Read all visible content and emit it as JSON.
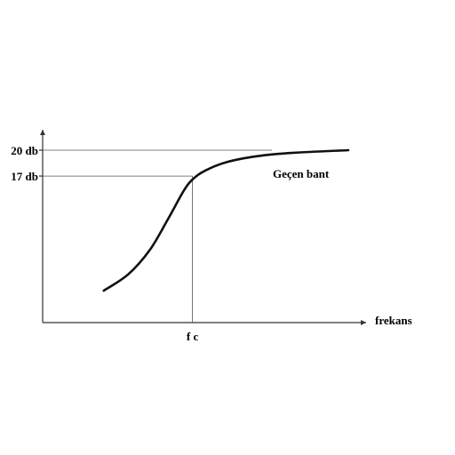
{
  "chart_data": {
    "type": "line",
    "title": "",
    "xlabel": "frekans",
    "ylabel": "",
    "yticks": [
      "20 db",
      "17 db"
    ],
    "xticks": [
      "f c"
    ],
    "annotation": "Geçen bant",
    "series": [
      {
        "values": [
          {
            "x": 0.2,
            "y": 3.7
          },
          {
            "x": 0.28,
            "y": 5.6
          },
          {
            "x": 0.35,
            "y": 8.4
          },
          {
            "x": 0.41,
            "y": 12.0
          },
          {
            "x": 0.46,
            "y": 15.2
          },
          {
            "x": 0.49,
            "y": 16.6
          },
          {
            "x": 0.53,
            "y": 17.6
          },
          {
            "x": 0.6,
            "y": 18.6
          },
          {
            "x": 0.7,
            "y": 19.3
          },
          {
            "x": 0.82,
            "y": 19.7
          },
          {
            "x": 1.0,
            "y": 20.0
          }
        ]
      }
    ],
    "fc_point": {
      "x": 0.49,
      "y": 17
    },
    "ref_20_extent": 0.75,
    "xlim": [
      0,
      1.05
    ],
    "ylim": [
      0,
      20
    ],
    "grid": false,
    "axis_color": "#333333",
    "line_color": "#111111"
  }
}
